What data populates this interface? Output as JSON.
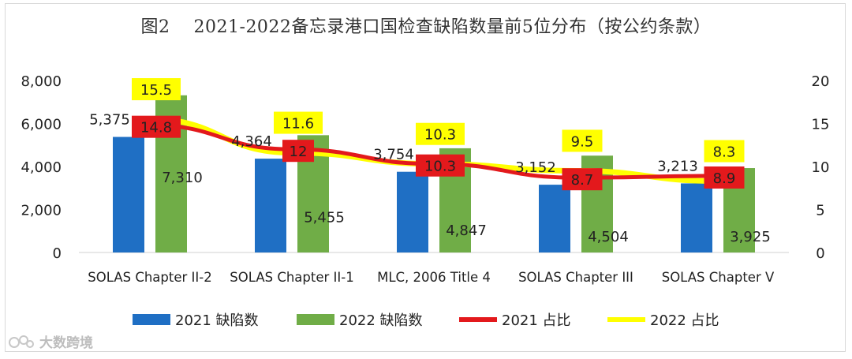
{
  "chart_data": {
    "type": "bar",
    "title": "图2    2021-2022备忘录港口国检查缺陷数量前5位分布（按公约条款）",
    "categories": [
      "SOLAS Chapter II-2",
      "SOLAS Chapter II-1",
      "MLC, 2006 Title 4",
      "SOLAS Chapter III",
      "SOLAS Chapter V"
    ],
    "series": [
      {
        "name": "2021 缺陷数",
        "kind": "bar",
        "axis": "left",
        "color": "#1f6fc4",
        "values": [
          5375,
          4364,
          3754,
          3152,
          3213
        ],
        "labels": [
          "5,375",
          "4,364",
          "3,754",
          "3,152",
          "3,213"
        ]
      },
      {
        "name": "2022 缺陷数",
        "kind": "bar",
        "axis": "left",
        "color": "#70ad47",
        "values": [
          7310,
          5455,
          4847,
          4504,
          3925
        ],
        "labels": [
          "7,310",
          "5,455",
          "4,847",
          "4,504",
          "3,925"
        ]
      },
      {
        "name": "2021 占比",
        "kind": "line",
        "axis": "right",
        "color": "#e3191c",
        "values": [
          14.8,
          12,
          10.3,
          8.7,
          8.9
        ],
        "labels": [
          "14.8",
          "12",
          "10.3",
          "8.7",
          "8.9"
        ]
      },
      {
        "name": "2022 占比",
        "kind": "line",
        "axis": "right",
        "color": "#ffff00",
        "values": [
          15.5,
          11.6,
          10.3,
          9.5,
          8.3
        ],
        "labels": [
          "15.5",
          "11.6",
          "10.3",
          "9.5",
          "8.3"
        ]
      }
    ],
    "left_axis": {
      "ylim": [
        0,
        8000
      ],
      "ticks": [
        0,
        2000,
        4000,
        6000,
        8000
      ],
      "tick_labels": [
        "0",
        "2,000",
        "4,000",
        "6,000",
        "8,000"
      ]
    },
    "right_axis": {
      "ylim": [
        0,
        20
      ],
      "ticks": [
        0,
        5,
        10,
        15,
        20
      ],
      "tick_labels": [
        "0",
        "5",
        "10",
        "15",
        "20"
      ]
    },
    "legend_position": "bottom",
    "grid": false
  },
  "watermark": {
    "text": "大数跨境",
    "icon": "brand-logo-icon"
  }
}
